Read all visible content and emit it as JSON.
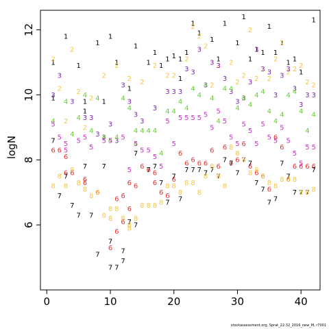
{
  "chart_data": {
    "type": "scatter",
    "title": "",
    "xlabel": "",
    "ylabel": "logN",
    "xlim": [
      -1,
      43
    ],
    "ylim": [
      4.0,
      12.6
    ],
    "xticks": [
      0,
      10,
      20,
      30,
      40
    ],
    "yticks": [
      6,
      8,
      10,
      12
    ],
    "grid": false,
    "legend": "none",
    "marker": "digit label",
    "colors": {
      "1": "#000000",
      "2": "#f5c542",
      "3": "#7b22b2",
      "4": "#66cc33",
      "5": "#cc2ccc",
      "6": "#e83535",
      "7": "#000000",
      "8": "#f5c542"
    },
    "series": [
      {
        "label": "1",
        "color": "#000000",
        "points": [
          [
            1,
            11.0
          ],
          [
            3,
            11.8
          ],
          [
            5,
            10.9
          ],
          [
            6,
            9.8
          ],
          [
            8,
            11.6
          ],
          [
            9,
            9.8
          ],
          [
            10,
            11.8
          ],
          [
            11,
            11.0
          ],
          [
            14,
            11.5
          ],
          [
            16,
            11.0
          ],
          [
            17,
            11.3
          ],
          [
            18,
            10.9
          ],
          [
            19,
            11.1
          ],
          [
            20,
            11.2
          ],
          [
            21,
            11.1
          ],
          [
            21,
            10.5
          ],
          [
            22,
            11.3
          ],
          [
            23,
            12.2
          ],
          [
            24,
            11.9
          ],
          [
            26,
            11.7
          ],
          [
            27,
            11.1
          ],
          [
            28,
            12.2
          ],
          [
            30,
            11.6
          ],
          [
            31,
            12.4
          ],
          [
            32,
            11.1
          ],
          [
            33,
            11.4
          ],
          [
            34,
            11.3
          ],
          [
            35,
            12.1
          ],
          [
            36,
            11.3
          ],
          [
            37,
            11.6
          ],
          [
            38,
            11.0
          ],
          [
            39,
            11.1
          ],
          [
            40,
            10.7
          ],
          [
            42,
            12.3
          ],
          [
            1,
            9.9
          ],
          [
            6,
            9.5
          ],
          [
            13,
            10.2
          ]
        ]
      },
      {
        "label": "2",
        "color": "#f5c542",
        "points": [
          [
            1,
            11.1
          ],
          [
            2,
            10.2
          ],
          [
            4,
            11.4
          ],
          [
            5,
            10.1
          ],
          [
            7,
            9.9
          ],
          [
            9,
            10.6
          ],
          [
            11,
            10.9
          ],
          [
            13,
            10.5
          ],
          [
            15,
            10.4
          ],
          [
            17,
            10.9
          ],
          [
            19,
            10.6
          ],
          [
            20,
            10.6
          ],
          [
            22,
            11.1
          ],
          [
            23,
            12.1
          ],
          [
            24,
            11.8
          ],
          [
            25,
            11.5
          ],
          [
            26,
            10.3
          ],
          [
            27,
            10.9
          ],
          [
            29,
            11.0
          ],
          [
            30,
            10.4
          ],
          [
            31,
            10.6
          ],
          [
            32,
            12.0
          ],
          [
            33,
            10.5
          ],
          [
            34,
            10.8
          ],
          [
            35,
            10.5
          ],
          [
            36,
            11.1
          ],
          [
            37,
            11.6
          ],
          [
            38,
            10.7
          ],
          [
            39,
            10.8
          ],
          [
            40,
            10.9
          ],
          [
            41,
            10.4
          ],
          [
            42,
            10.3
          ],
          [
            3,
            9.2
          ],
          [
            6,
            9.0
          ]
        ]
      },
      {
        "label": "3",
        "color": "#7b22b2",
        "points": [
          [
            1,
            10.0
          ],
          [
            2,
            10.6
          ],
          [
            4,
            9.8
          ],
          [
            6,
            9.3
          ],
          [
            7,
            9.3
          ],
          [
            8,
            8.8
          ],
          [
            9,
            8.7
          ],
          [
            10,
            9.1
          ],
          [
            11,
            8.6
          ],
          [
            12,
            10.3
          ],
          [
            13,
            9.8
          ],
          [
            14,
            9.4
          ],
          [
            15,
            9.2
          ],
          [
            17,
            9.6
          ],
          [
            19,
            10.1
          ],
          [
            20,
            10.1
          ],
          [
            21,
            10.1
          ],
          [
            22,
            10.8
          ],
          [
            23,
            10.7
          ],
          [
            24,
            11.4
          ],
          [
            25,
            10.3
          ],
          [
            26,
            11.0
          ],
          [
            27,
            10.9
          ],
          [
            28,
            10.5
          ],
          [
            29,
            10.1
          ],
          [
            30,
            9.8
          ],
          [
            31,
            9.9
          ],
          [
            32,
            10.4
          ],
          [
            33,
            11.4
          ],
          [
            34,
            10.8
          ],
          [
            35,
            10.7
          ],
          [
            36,
            10.0
          ],
          [
            37,
            10.6
          ],
          [
            38,
            10.8
          ],
          [
            39,
            10.2
          ],
          [
            40,
            9.7
          ],
          [
            41,
            10.0
          ],
          [
            42,
            10.0
          ]
        ]
      },
      {
        "label": "4",
        "color": "#66cc33",
        "points": [
          [
            1,
            9.2
          ],
          [
            3,
            9.8
          ],
          [
            5,
            9.3
          ],
          [
            6,
            10.0
          ],
          [
            7,
            8.9
          ],
          [
            8,
            9.9
          ],
          [
            9,
            8.7
          ],
          [
            10,
            8.6
          ],
          [
            11,
            8.7
          ],
          [
            12,
            9.9
          ],
          [
            13,
            9.6
          ],
          [
            14,
            8.9
          ],
          [
            15,
            8.9
          ],
          [
            16,
            8.9
          ],
          [
            17,
            8.9
          ],
          [
            18,
            8.2
          ],
          [
            19,
            9.5
          ],
          [
            20,
            9.5
          ],
          [
            21,
            9.8
          ],
          [
            22,
            9.6
          ],
          [
            23,
            10.2
          ],
          [
            24,
            10.0
          ],
          [
            25,
            10.3
          ],
          [
            26,
            9.9
          ],
          [
            27,
            9.2
          ],
          [
            28,
            10.2
          ],
          [
            29,
            10.2
          ],
          [
            30,
            9.6
          ],
          [
            31,
            9.9
          ],
          [
            32,
            9.7
          ],
          [
            33,
            10.0
          ],
          [
            34,
            10.1
          ],
          [
            35,
            9.5
          ],
          [
            36,
            9.2
          ],
          [
            37,
            9.4
          ],
          [
            38,
            10.0
          ],
          [
            39,
            10.1
          ],
          [
            40,
            9.5
          ],
          [
            41,
            8.9
          ],
          [
            42,
            9.4
          ],
          [
            4,
            8.8
          ],
          [
            14,
            8.5
          ]
        ]
      },
      {
        "label": "5",
        "color": "#cc2ccc",
        "points": [
          [
            1,
            9.1
          ],
          [
            2,
            8.7
          ],
          [
            3,
            8.5
          ],
          [
            5,
            8.6
          ],
          [
            6,
            8.7
          ],
          [
            7,
            8.4
          ],
          [
            9,
            8.6
          ],
          [
            10,
            8.6
          ],
          [
            12,
            8.7
          ],
          [
            13,
            7.7
          ],
          [
            14,
            8.5
          ],
          [
            15,
            8.3
          ],
          [
            16,
            8.3
          ],
          [
            17,
            8.1
          ],
          [
            18,
            7.8
          ],
          [
            19,
            9.2
          ],
          [
            20,
            8.5
          ],
          [
            21,
            9.3
          ],
          [
            22,
            9.3
          ],
          [
            23,
            9.3
          ],
          [
            24,
            9.3
          ],
          [
            25,
            9.4
          ],
          [
            26,
            9.0
          ],
          [
            27,
            9.5
          ],
          [
            28,
            9.2
          ],
          [
            29,
            8.7
          ],
          [
            30,
            8.5
          ],
          [
            31,
            9.1
          ],
          [
            32,
            8.9
          ],
          [
            33,
            8.5
          ],
          [
            34,
            9.1
          ],
          [
            35,
            8.7
          ],
          [
            36,
            8.6
          ],
          [
            37,
            9.0
          ],
          [
            38,
            8.6
          ],
          [
            39,
            8.2
          ],
          [
            40,
            7.9
          ],
          [
            41,
            8.4
          ],
          [
            42,
            8.4
          ],
          [
            3,
            8.3
          ]
        ]
      },
      {
        "label": "6",
        "color": "#e83535",
        "points": [
          [
            1,
            8.3
          ],
          [
            2,
            8.3
          ],
          [
            3,
            7.6
          ],
          [
            4,
            7.6
          ],
          [
            6,
            7.3
          ],
          [
            8,
            7.0
          ],
          [
            11,
            6.8
          ],
          [
            12,
            6.9
          ],
          [
            13,
            7.3
          ],
          [
            14,
            7.2
          ],
          [
            15,
            7.8
          ],
          [
            16,
            7.7
          ],
          [
            17,
            7.6
          ],
          [
            18,
            7.0
          ],
          [
            19,
            6.9
          ],
          [
            20,
            7.4
          ],
          [
            21,
            8.2
          ],
          [
            22,
            7.9
          ],
          [
            23,
            8.0
          ],
          [
            24,
            7.9
          ],
          [
            25,
            7.9
          ],
          [
            26,
            8.3
          ],
          [
            27,
            7.8
          ],
          [
            28,
            8.4
          ],
          [
            29,
            7.9
          ],
          [
            30,
            8.0
          ],
          [
            31,
            8.5
          ],
          [
            32,
            7.8
          ],
          [
            33,
            7.6
          ],
          [
            34,
            7.5
          ],
          [
            35,
            7.1
          ],
          [
            36,
            8.7
          ],
          [
            37,
            8.4
          ],
          [
            38,
            7.4
          ],
          [
            39,
            7.8
          ],
          [
            40,
            7.8
          ],
          [
            41,
            7.8
          ],
          [
            42,
            7.8
          ],
          [
            10,
            5.3
          ],
          [
            11,
            5.8
          ],
          [
            12,
            6.1
          ],
          [
            13,
            6.5
          ],
          [
            3,
            8.1
          ],
          [
            6,
            7.4
          ],
          [
            17,
            7.3
          ]
        ]
      },
      {
        "label": "7",
        "color": "#000000",
        "points": [
          [
            1,
            8.6
          ],
          [
            2,
            6.9
          ],
          [
            3,
            7.5
          ],
          [
            4,
            6.6
          ],
          [
            5,
            6.3
          ],
          [
            6,
            7.8
          ],
          [
            7,
            6.3
          ],
          [
            8,
            5.1
          ],
          [
            9,
            7.8
          ],
          [
            10,
            5.5
          ],
          [
            11,
            4.7
          ],
          [
            12,
            5.2
          ],
          [
            13,
            6.1
          ],
          [
            14,
            6.0
          ],
          [
            16,
            7.7
          ],
          [
            18,
            7.3
          ],
          [
            19,
            6.7
          ],
          [
            20,
            7.5
          ],
          [
            21,
            6.8
          ],
          [
            22,
            7.7
          ],
          [
            23,
            7.7
          ],
          [
            24,
            7.7
          ],
          [
            25,
            7.6
          ],
          [
            26,
            7.7
          ],
          [
            27,
            7.5
          ],
          [
            28,
            8.0
          ],
          [
            29,
            7.9
          ],
          [
            30,
            7.6
          ],
          [
            31,
            8.0
          ],
          [
            32,
            7.9
          ],
          [
            33,
            7.3
          ],
          [
            34,
            7.1
          ],
          [
            35,
            6.7
          ],
          [
            36,
            6.8
          ],
          [
            37,
            7.9
          ],
          [
            38,
            7.5
          ],
          [
            39,
            7.0
          ],
          [
            40,
            7.0
          ],
          [
            41,
            7.0
          ],
          [
            42,
            7.7
          ],
          [
            14,
            8.2
          ],
          [
            17,
            7.8
          ],
          [
            10,
            4.7
          ],
          [
            12,
            4.9
          ]
        ]
      },
      {
        "label": "8",
        "color": "#f5c542",
        "points": [
          [
            1,
            7.2
          ],
          [
            2,
            7.5
          ],
          [
            3,
            7.2
          ],
          [
            4,
            7.7
          ],
          [
            5,
            7.3
          ],
          [
            6,
            7.1
          ],
          [
            7,
            6.9
          ],
          [
            8,
            7.0
          ],
          [
            9,
            6.3
          ],
          [
            10,
            6.2
          ],
          [
            11,
            6.5
          ],
          [
            12,
            6.2
          ],
          [
            13,
            5.9
          ],
          [
            14,
            6.2
          ],
          [
            15,
            6.6
          ],
          [
            16,
            6.6
          ],
          [
            17,
            6.6
          ],
          [
            18,
            6.7
          ],
          [
            19,
            7.2
          ],
          [
            20,
            7.2
          ],
          [
            21,
            7.0
          ],
          [
            22,
            7.3
          ],
          [
            23,
            7.3
          ],
          [
            24,
            7.0
          ],
          [
            25,
            7.5
          ],
          [
            26,
            7.8
          ],
          [
            27,
            7.5
          ],
          [
            28,
            7.2
          ],
          [
            29,
            8.4
          ],
          [
            30,
            8.2
          ],
          [
            31,
            8.0
          ],
          [
            32,
            7.6
          ],
          [
            33,
            7.7
          ],
          [
            34,
            7.5
          ],
          [
            35,
            7.3
          ],
          [
            36,
            7.2
          ],
          [
            37,
            7.4
          ],
          [
            38,
            7.4
          ],
          [
            39,
            7.4
          ],
          [
            40,
            7.0
          ],
          [
            41,
            7.0
          ],
          [
            42,
            7.1
          ],
          [
            10,
            6.5
          ],
          [
            13,
            6.0
          ]
        ]
      }
    ]
  },
  "footer": {
    "text": "stockassessment.org, Sprat_22-32_2016_new_M, r7001"
  }
}
